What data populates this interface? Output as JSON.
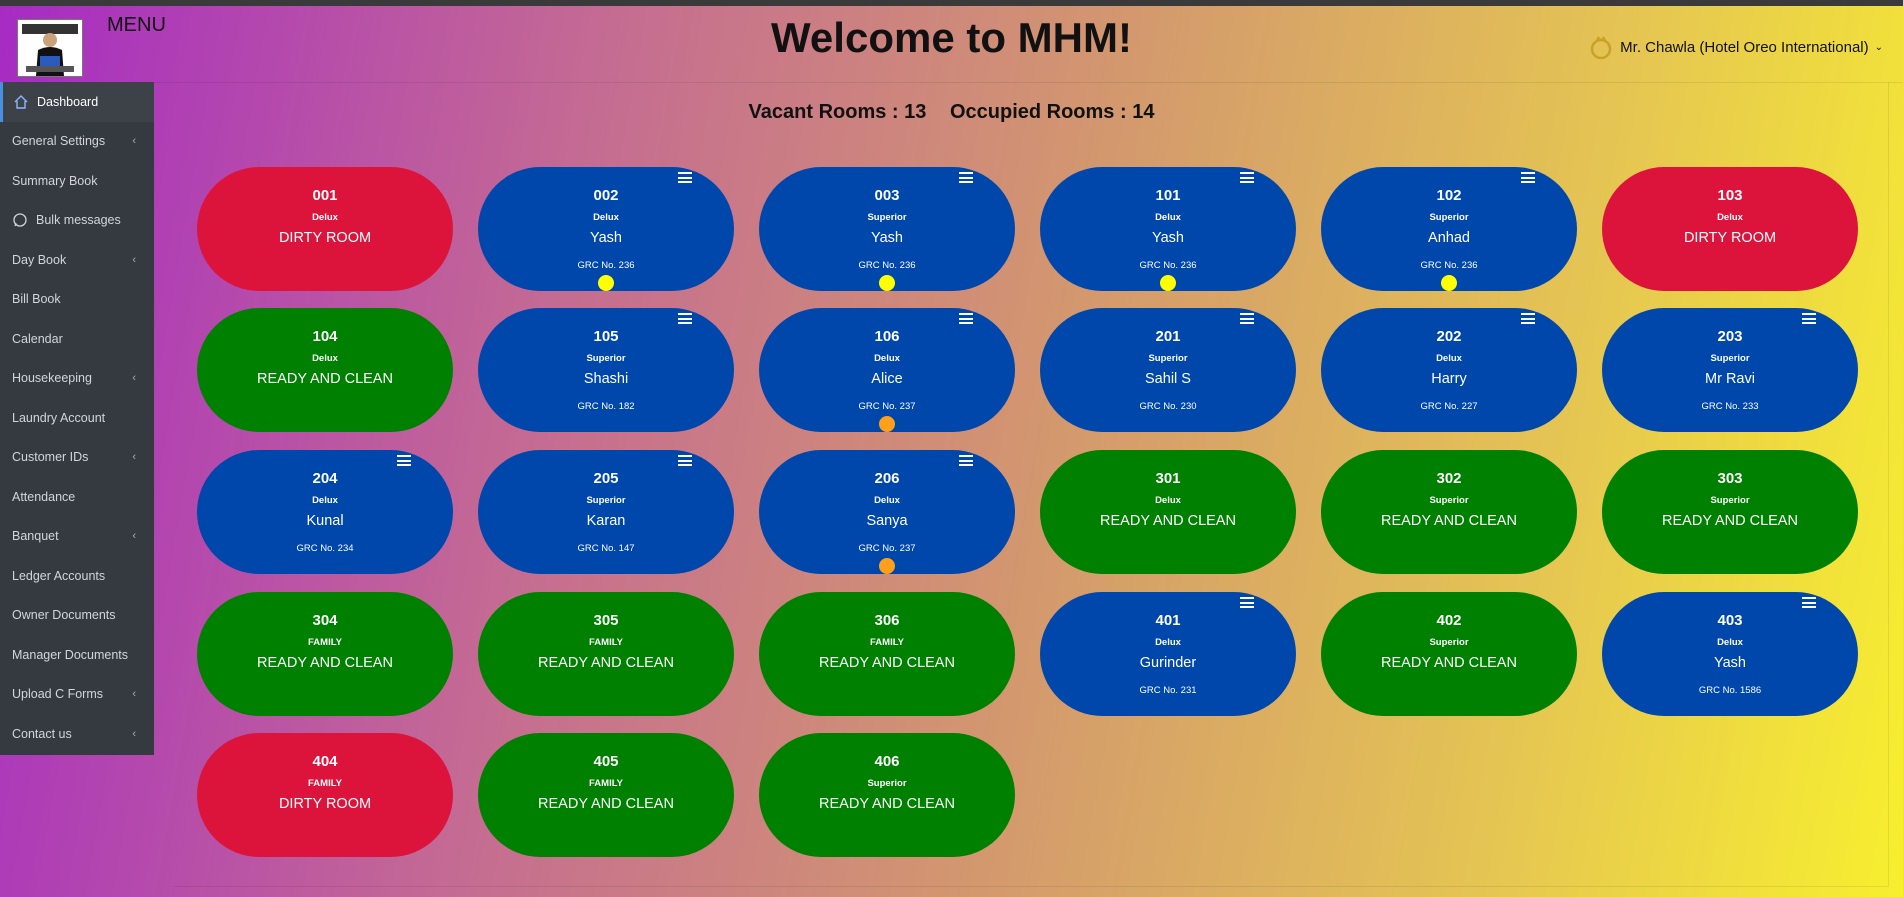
{
  "header": {
    "menu_label": "MENU",
    "title": "Welcome to MHM!",
    "user": "Mr. Chawla (Hotel Oreo International)"
  },
  "sidebar": {
    "items": [
      {
        "label": "Dashboard",
        "icon": "home-icon",
        "active": true,
        "submenu": false
      },
      {
        "label": "General Settings",
        "submenu": true
      },
      {
        "label": "Summary Book",
        "submenu": false
      },
      {
        "label": "Bulk messages",
        "icon": "whatsapp-icon",
        "submenu": false
      },
      {
        "label": "Day Book",
        "submenu": true
      },
      {
        "label": "Bill Book",
        "submenu": false
      },
      {
        "label": "Calendar",
        "submenu": false
      },
      {
        "label": "Housekeeping",
        "submenu": true
      },
      {
        "label": "Laundry Account",
        "submenu": false
      },
      {
        "label": "Customer IDs",
        "submenu": true
      },
      {
        "label": "Attendance",
        "submenu": false
      },
      {
        "label": "Banquet",
        "submenu": true
      },
      {
        "label": "Ledger Accounts",
        "submenu": false
      },
      {
        "label": "Owner Documents",
        "submenu": false
      },
      {
        "label": "Manager Documents",
        "submenu": false
      },
      {
        "label": "Upload C Forms",
        "submenu": true
      },
      {
        "label": "Contact us",
        "submenu": true
      }
    ]
  },
  "summary": {
    "vacant": "Vacant Rooms : 13",
    "occupied": "Occupied Rooms : 14"
  },
  "colors": {
    "dirty": "#dc143c",
    "ready": "#008000",
    "occupied": "#0047ab",
    "dot_yellow": "#ffff00",
    "dot_orange": "#ff9f1a"
  },
  "rooms": [
    {
      "number": "001",
      "type": "Delux",
      "state": "dirty",
      "status": "DIRTY ROOM"
    },
    {
      "number": "002",
      "type": "Delux",
      "state": "occupied",
      "status": "Yash",
      "grc": "GRC No. 236",
      "menu": true,
      "dot": "yellow"
    },
    {
      "number": "003",
      "type": "Superior",
      "state": "occupied",
      "status": "Yash",
      "grc": "GRC No. 236",
      "menu": true,
      "dot": "yellow"
    },
    {
      "number": "101",
      "type": "Delux",
      "state": "occupied",
      "status": "Yash",
      "grc": "GRC No. 236",
      "menu": true,
      "dot": "yellow"
    },
    {
      "number": "102",
      "type": "Superior",
      "state": "occupied",
      "status": "Anhad",
      "grc": "GRC No. 236",
      "menu": true,
      "dot": "yellow"
    },
    {
      "number": "103",
      "type": "Delux",
      "state": "dirty",
      "status": "DIRTY ROOM"
    },
    {
      "number": "104",
      "type": "Delux",
      "state": "ready",
      "status": "READY AND CLEAN"
    },
    {
      "number": "105",
      "type": "Superior",
      "state": "occupied",
      "status": "Shashi",
      "grc": "GRC No. 182",
      "menu": true
    },
    {
      "number": "106",
      "type": "Delux",
      "state": "occupied",
      "status": "Alice",
      "grc": "GRC No. 237",
      "menu": true,
      "dot": "orange"
    },
    {
      "number": "201",
      "type": "Superior",
      "state": "occupied",
      "status": "Sahil S",
      "grc": "GRC No. 230",
      "menu": true
    },
    {
      "number": "202",
      "type": "Delux",
      "state": "occupied",
      "status": "Harry",
      "grc": "GRC No. 227",
      "menu": true
    },
    {
      "number": "203",
      "type": "Superior",
      "state": "occupied",
      "status": "Mr Ravi",
      "grc": "GRC No. 233",
      "menu": true
    },
    {
      "number": "204",
      "type": "Delux",
      "state": "occupied",
      "status": "Kunal",
      "grc": "GRC No. 234",
      "menu": true
    },
    {
      "number": "205",
      "type": "Superior",
      "state": "occupied",
      "status": "Karan",
      "grc": "GRC No. 147",
      "menu": true
    },
    {
      "number": "206",
      "type": "Delux",
      "state": "occupied",
      "status": "Sanya",
      "grc": "GRC No. 237",
      "menu": true,
      "dot": "orange"
    },
    {
      "number": "301",
      "type": "Delux",
      "state": "ready",
      "status": "READY AND CLEAN"
    },
    {
      "number": "302",
      "type": "Superior",
      "state": "ready",
      "status": "READY AND CLEAN"
    },
    {
      "number": "303",
      "type": "Superior",
      "state": "ready",
      "status": "READY AND CLEAN"
    },
    {
      "number": "304",
      "type": "FAMILY",
      "state": "ready",
      "status": "READY AND CLEAN"
    },
    {
      "number": "305",
      "type": "FAMILY",
      "state": "ready",
      "status": "READY AND CLEAN"
    },
    {
      "number": "306",
      "type": "FAMILY",
      "state": "ready",
      "status": "READY AND CLEAN"
    },
    {
      "number": "401",
      "type": "Delux",
      "state": "occupied",
      "status": "Gurinder",
      "grc": "GRC No. 231",
      "menu": true
    },
    {
      "number": "402",
      "type": "Superior",
      "state": "ready",
      "status": "READY AND CLEAN"
    },
    {
      "number": "403",
      "type": "Delux",
      "state": "occupied",
      "status": "Yash",
      "grc": "GRC No. 1586",
      "menu": true
    },
    {
      "number": "404",
      "type": "FAMILY",
      "state": "dirty",
      "status": "DIRTY ROOM"
    },
    {
      "number": "405",
      "type": "FAMILY",
      "state": "ready",
      "status": "READY AND CLEAN"
    },
    {
      "number": "406",
      "type": "Superior",
      "state": "ready",
      "status": "READY AND CLEAN"
    }
  ]
}
